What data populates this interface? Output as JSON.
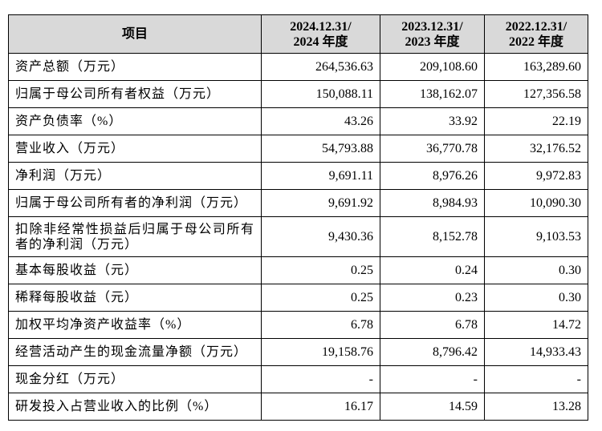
{
  "table": {
    "header": [
      "项目",
      [
        "2024.12.31/",
        "2024 年度"
      ],
      [
        "2023.12.31/",
        "2023 年度"
      ],
      [
        "2022.12.31/",
        "2022 年度"
      ]
    ],
    "rows": [
      [
        "资产总额（万元）",
        "264,536.63",
        "209,108.60",
        "163,289.60"
      ],
      [
        "归属于母公司所有者权益（万元）",
        "150,088.11",
        "138,162.07",
        "127,356.58"
      ],
      [
        "资产负债率（%）",
        "43.26",
        "33.92",
        "22.19"
      ],
      [
        "营业收入（万元）",
        "54,793.88",
        "36,770.78",
        "32,176.52"
      ],
      [
        "净利润（万元）",
        "9,691.11",
        "8,976.26",
        "9,972.83"
      ],
      [
        "归属于母公司所有者的净利润（万元）",
        "9,691.92",
        "8,984.93",
        "10,090.30"
      ],
      [
        "扣除非经常性损益后归属于母公司所有者的净利润（万元）",
        "9,430.36",
        "8,152.78",
        "9,103.53"
      ],
      [
        "基本每股收益（元）",
        "0.25",
        "0.24",
        "0.30"
      ],
      [
        "稀释每股收益（元）",
        "0.25",
        "0.23",
        "0.30"
      ],
      [
        "加权平均净资产收益率（%）",
        "6.78",
        "6.78",
        "14.72"
      ],
      [
        "经营活动产生的现金流量净额（万元）",
        "19,158.76",
        "8,796.42",
        "14,933.43"
      ],
      [
        "现金分红（万元）",
        "-",
        "-",
        "-"
      ],
      [
        "研发投入占营业收入的比例（%）",
        "16.17",
        "14.59",
        "13.28"
      ]
    ]
  }
}
